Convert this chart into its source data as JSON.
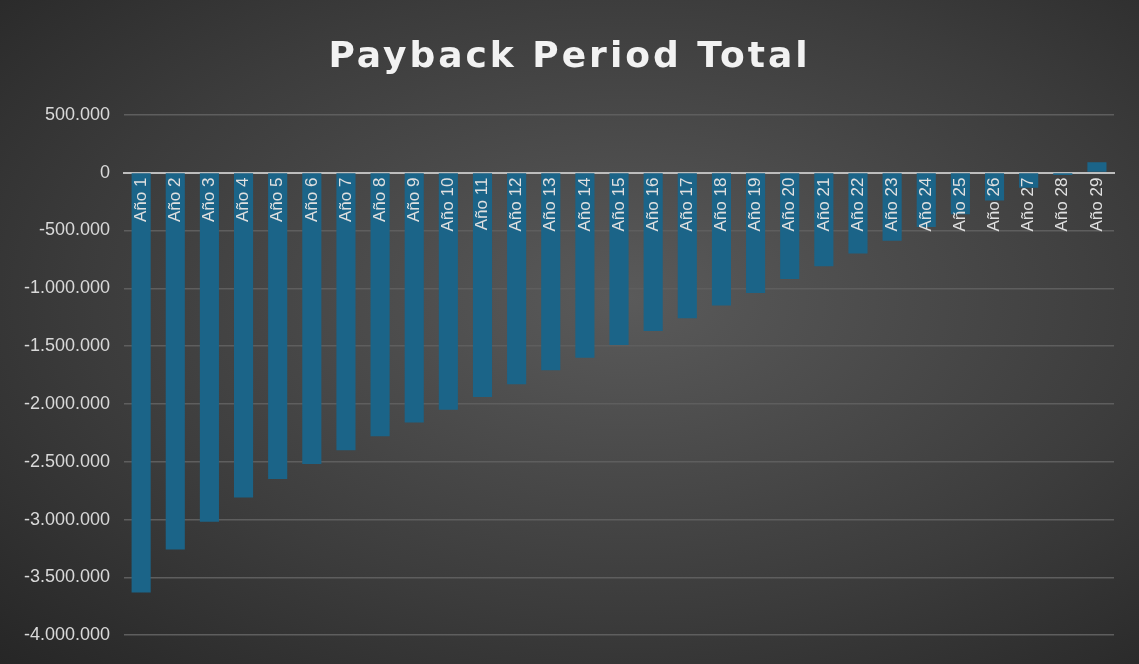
{
  "chart_data": {
    "type": "bar",
    "title": "Payback Period Total",
    "categories": [
      "Año 1",
      "Año 2",
      "Año 3",
      "Año 4",
      "Año 5",
      "Año 6",
      "Año 7",
      "Año 8",
      "Año 9",
      "Año 10",
      "Año 11",
      "Año 12",
      "Año 13",
      "Año 14",
      "Año 15",
      "Año 16",
      "Año 17",
      "Año 18",
      "Año 19",
      "Año 20",
      "Año 21",
      "Año 22",
      "Año 23",
      "Año 24",
      "Año 25",
      "Año 26",
      "Año 27",
      "Año 28",
      "Año 29"
    ],
    "values": [
      -3630000,
      -3260000,
      -3020000,
      -2810000,
      -2650000,
      -2520000,
      -2400000,
      -2280000,
      -2160000,
      -2050000,
      -1940000,
      -1830000,
      -1710000,
      -1600000,
      -1490000,
      -1370000,
      -1260000,
      -1150000,
      -1040000,
      -920000,
      -810000,
      -700000,
      -590000,
      -470000,
      -360000,
      -240000,
      -130000,
      -20000,
      90000
    ],
    "color": "#1b6488",
    "ylim": [
      -4000000,
      500000
    ],
    "yticks": [
      {
        "value": -4000000,
        "label": "-4.000.000"
      },
      {
        "value": -3500000,
        "label": "-3.500.000"
      },
      {
        "value": -3000000,
        "label": "-3.000.000"
      },
      {
        "value": -2500000,
        "label": "-2.500.000"
      },
      {
        "value": -2000000,
        "label": "-2.000.000"
      },
      {
        "value": -1500000,
        "label": "-1.500.000"
      },
      {
        "value": -1000000,
        "label": "-1.000.000"
      },
      {
        "value": -500000,
        "label": "-500.000"
      },
      {
        "value": 0,
        "label": "0"
      },
      {
        "value": 500000,
        "label": "500.000"
      }
    ],
    "grid": "y",
    "legend": false
  }
}
